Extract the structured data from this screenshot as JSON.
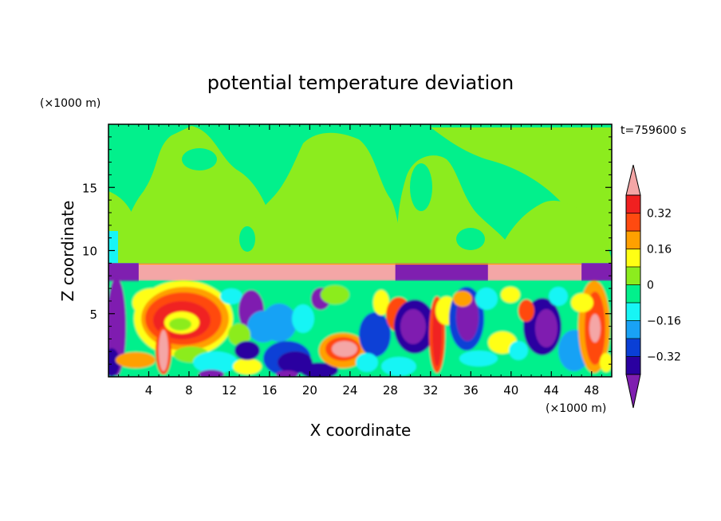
{
  "chart_data": {
    "type": "heatmap",
    "title": "potential temperature deviation",
    "time_label": "t=759600 s",
    "xlabel": "X coordinate",
    "ylabel": "Z coordinate",
    "x_unit": "(×1000 m)",
    "y_unit": "(×1000 m)",
    "xlim": [
      0,
      50
    ],
    "ylim": [
      0,
      20
    ],
    "x_ticks": [
      "4",
      "8",
      "12",
      "16",
      "20",
      "24",
      "28",
      "32",
      "36",
      "40",
      "44",
      "48"
    ],
    "x_tick_values": [
      4,
      8,
      12,
      16,
      20,
      24,
      28,
      32,
      36,
      40,
      44,
      48
    ],
    "y_ticks": [
      "5",
      "10",
      "15"
    ],
    "y_tick_values": [
      5,
      10,
      15
    ],
    "colorbar": {
      "levels": [
        -0.4,
        -0.32,
        -0.24,
        -0.16,
        -0.08,
        0,
        0.08,
        0.16,
        0.24,
        0.32,
        0.4
      ],
      "labels": [
        "0.32",
        "0.16",
        "0",
        "−0.16",
        "−0.32"
      ],
      "label_values": [
        0.32,
        0.16,
        0,
        -0.16,
        -0.32
      ],
      "colors": [
        "#7f1fb0",
        "#2a00a0",
        "#0a3fd6",
        "#19a2f5",
        "#17f5f5",
        "#02f08c",
        "#8cec1e",
        "#ffff14",
        "#ffa000",
        "#ff4a10",
        "#f02020",
        "#f4a6a6"
      ],
      "under_color": "#7f1fb0",
      "over_color": "#f4a6a6"
    }
  }
}
